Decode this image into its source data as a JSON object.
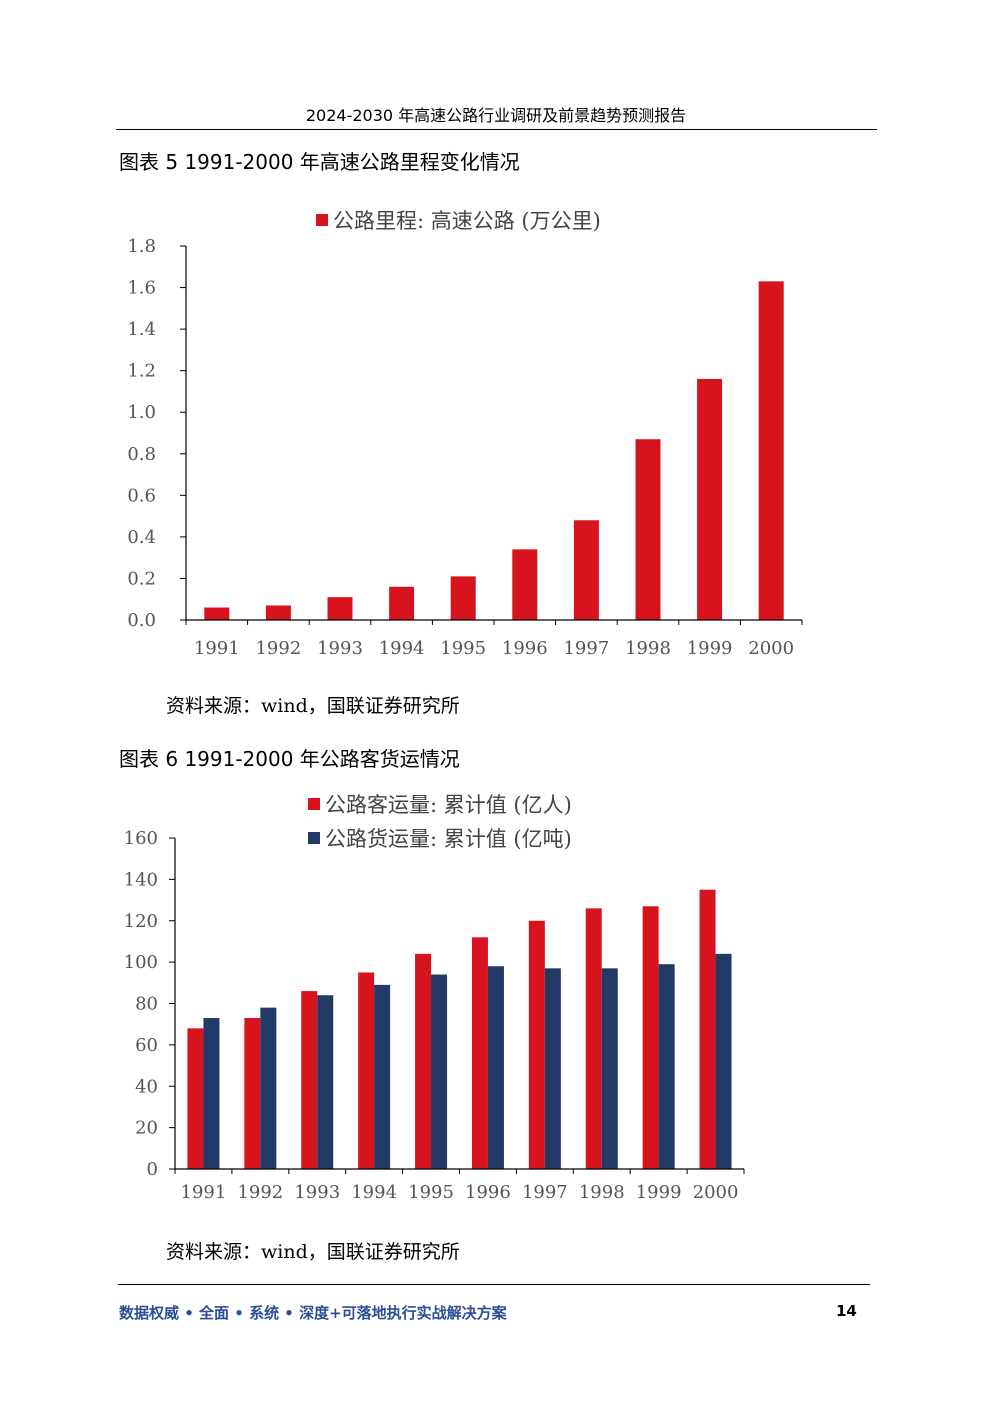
{
  "header": {
    "title": "2024-2030 年高速公路行业调研及前景趋势预测报告"
  },
  "figures": [
    {
      "caption": "图表 5 1991-2000 年高速公路里程变化情况",
      "source": "资料来源：wind，国联证券研究所"
    },
    {
      "caption": "图表 6 1991-2000 年公路客货运情况",
      "source": "资料来源：wind，国联证券研究所"
    }
  ],
  "chart_data": [
    {
      "type": "bar",
      "title": "",
      "categories": [
        "1991",
        "1992",
        "1993",
        "1994",
        "1995",
        "1996",
        "1997",
        "1998",
        "1999",
        "2000"
      ],
      "series": [
        {
          "name": "公路里程: 高速公路 (万公里)",
          "color": "#d7141d",
          "values": [
            0.06,
            0.07,
            0.11,
            0.16,
            0.21,
            0.34,
            0.48,
            0.87,
            1.16,
            1.63
          ]
        }
      ],
      "ylim": [
        0,
        1.8
      ],
      "yticks": [
        "0.0",
        "0.2",
        "0.4",
        "0.6",
        "0.8",
        "1.0",
        "1.2",
        "1.4",
        "1.6",
        "1.8"
      ],
      "xlabel": "",
      "ylabel": "",
      "legend": "top-center",
      "grid": false
    },
    {
      "type": "bar",
      "title": "",
      "categories": [
        "1991",
        "1992",
        "1993",
        "1994",
        "1995",
        "1996",
        "1997",
        "1998",
        "1999",
        "2000"
      ],
      "series": [
        {
          "name": "公路客运量: 累计值 (亿人)",
          "color": "#d7141d",
          "values": [
            68,
            73,
            86,
            95,
            104,
            112,
            120,
            126,
            127,
            135
          ]
        },
        {
          "name": "公路货运量: 累计值 (亿吨)",
          "color": "#233a67",
          "values": [
            73,
            78,
            84,
            89,
            94,
            98,
            97,
            97,
            99,
            104
          ]
        }
      ],
      "ylim": [
        0,
        160
      ],
      "yticks": [
        "0",
        "20",
        "40",
        "60",
        "80",
        "100",
        "120",
        "140",
        "160"
      ],
      "xlabel": "",
      "ylabel": "",
      "legend": "top-center",
      "grid": false
    }
  ],
  "footer": {
    "slogan": "数据权威 • 全面 • 系统 • 深度+可落地执行实战解决方案",
    "page_number": "14"
  }
}
